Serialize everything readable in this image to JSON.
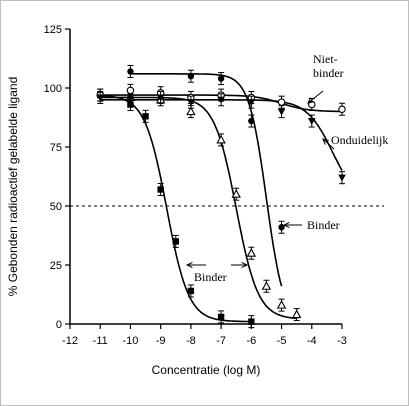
{
  "chart_data": {
    "type": "scatter",
    "xlabel": "Concentratie (log M)",
    "ylabel": "% Gebonden radioactief gelabelde ligand",
    "xlim": [
      -12,
      -3
    ],
    "ylim": [
      0,
      125
    ],
    "xticks": [
      -12,
      -11,
      -10,
      -9,
      -8,
      -7,
      -6,
      -5,
      -4,
      -3
    ],
    "yticks": [
      0,
      25,
      50,
      75,
      100,
      125
    ],
    "reference_line": {
      "y": 50,
      "style": "dashed"
    },
    "series": [
      {
        "marker": "square-filled",
        "x": [
          -11,
          -10,
          -9.5,
          -9,
          -8.5,
          -8,
          -7,
          -6
        ],
        "y": [
          97,
          93,
          88,
          57,
          35,
          14,
          3,
          1
        ],
        "curve": {
          "top": 97,
          "bottom": 1,
          "ec50": -8.8,
          "hill": 1.2,
          "xmin": -11,
          "xmax": -6
        }
      },
      {
        "marker": "triangle-open",
        "x": [
          -10,
          -9,
          -8,
          -7,
          -6.5,
          -6,
          -5.5,
          -5,
          -4.5
        ],
        "y": [
          96,
          95,
          90,
          78,
          55,
          30,
          16,
          8,
          4
        ],
        "curve": {
          "top": 96,
          "bottom": 2,
          "ec50": -6.5,
          "hill": 1.2,
          "xmin": -11,
          "xmax": -4.5
        }
      },
      {
        "marker": "circle-filled",
        "x": [
          -10,
          -8,
          -7,
          -6,
          -5
        ],
        "y": [
          107,
          105,
          104,
          86,
          41
        ],
        "curve": {
          "top": 106,
          "bottom": 0,
          "ec50": -5.5,
          "hill": 1.5,
          "xmin": -10,
          "xmax": -5
        }
      },
      {
        "marker": "circle-open",
        "x": [
          -11,
          -10,
          -9,
          -8,
          -7,
          -6,
          -5,
          -4,
          -3
        ],
        "y": [
          97,
          99,
          98,
          96,
          97,
          96,
          94,
          93,
          91
        ],
        "curve": {
          "top": 97,
          "bottom": 90,
          "ec50": -5,
          "hill": 1,
          "xmin": -11,
          "xmax": -3
        }
      },
      {
        "marker": "triangle-down-filled",
        "x": [
          -11,
          -10,
          -9,
          -8,
          -7,
          -6,
          -5,
          -4,
          -3
        ],
        "y": [
          96,
          95,
          96,
          94,
          95,
          94,
          90,
          86,
          62
        ],
        "curve": {
          "top": 95,
          "bottom": 50,
          "ec50": -3.3,
          "hill": 1,
          "xmin": -11,
          "xmax": -3
        }
      }
    ],
    "annotations": [
      {
        "id": "niet-binder",
        "text": "Niet-\nbinder"
      },
      {
        "id": "onduidelijk",
        "text": "Onduidelijk"
      },
      {
        "id": "binder-right",
        "text": "Binder"
      },
      {
        "id": "binder-left",
        "text": "Binder"
      }
    ]
  }
}
